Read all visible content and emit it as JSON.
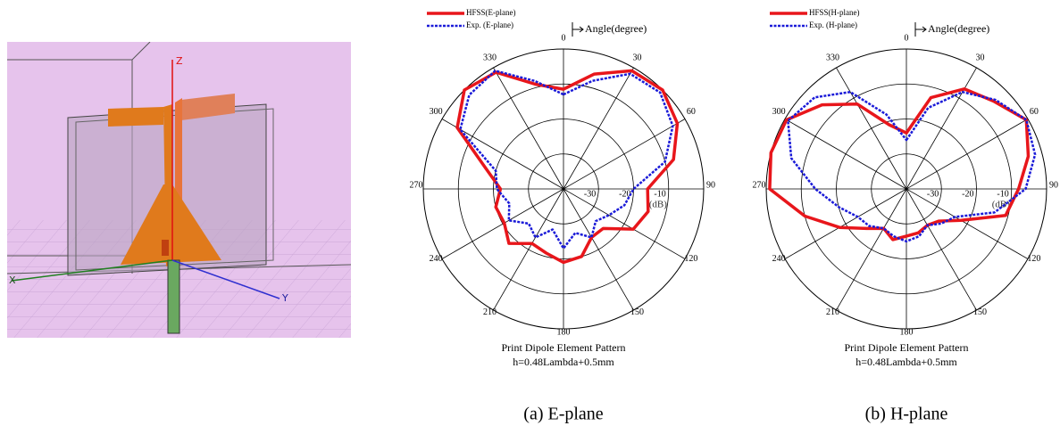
{
  "model": {
    "axis_labels": [
      "Z",
      "X",
      "Y"
    ]
  },
  "chart_data": [
    {
      "type": "polar",
      "caption": "(a) E-plane",
      "title": "Print Dipole Element Pattern",
      "subtitle": "h=0.48Lambda+0.5mm",
      "angle_label": "Angle(degree)",
      "r_label": "(dB)",
      "x": [
        0,
        15,
        30,
        45,
        60,
        75,
        90,
        105,
        120,
        135,
        150,
        165,
        180,
        195,
        210,
        225,
        240,
        255,
        270,
        285,
        300,
        315,
        330,
        345
      ],
      "xticks": [
        0,
        30,
        60,
        90,
        120,
        150,
        180,
        210,
        240,
        270,
        300,
        330
      ],
      "rlim": [
        -40,
        0
      ],
      "rticks": [
        -30,
        -20,
        -10
      ],
      "series": [
        {
          "name": "HFSS(E-plane)",
          "color": "#e8161b",
          "values": [
            -11.5,
            -6,
            -1,
            0,
            -2.5,
            -7.5,
            -16,
            -15,
            -17,
            -24,
            -24,
            -20,
            -19,
            -21,
            -22,
            -18,
            -20.5,
            -20,
            -22,
            -17,
            -5,
            0,
            -1.5,
            -9
          ]
        },
        {
          "name": "Exp. (E-plane)",
          "color": "#1b1bd8",
          "values": [
            -13,
            -8,
            -2,
            -1,
            -4,
            -10,
            -20,
            -22,
            -25,
            -27,
            -24,
            -27,
            -23,
            -28,
            -24,
            -26,
            -22,
            -24,
            -21,
            -20,
            -6,
            -2,
            -1,
            -8
          ]
        }
      ]
    },
    {
      "type": "polar",
      "caption": "(b) H-plane",
      "title": "Print Dipole Element Pattern",
      "subtitle": "h=0.48Lambda+0.5mm",
      "angle_label": "Angle(degree)",
      "r_label": "(dB)",
      "x": [
        0,
        15,
        30,
        45,
        60,
        75,
        90,
        105,
        120,
        135,
        150,
        165,
        180,
        195,
        210,
        225,
        240,
        255,
        270,
        285,
        300,
        315,
        330,
        345
      ],
      "xticks": [
        0,
        30,
        60,
        90,
        120,
        150,
        180,
        210,
        240,
        270,
        300,
        330
      ],
      "rlim": [
        -40,
        0
      ],
      "rticks": [
        -30,
        -20,
        -10
      ],
      "series": [
        {
          "name": "HFSS(H-plane)",
          "color": "#e8161b",
          "values": [
            -24,
            -13,
            -7,
            -4.6,
            -0.5,
            -4,
            -8,
            -10.7,
            -22,
            -27,
            -28,
            -27,
            -26.5,
            -25,
            -27,
            -24,
            -18,
            -10,
            -1,
            0,
            -0.5,
            -6,
            -12,
            -21
          ]
        },
        {
          "name": "Exp. (H-plane)",
          "color": "#1b1bd8",
          "values": [
            -26,
            -16,
            -8,
            -4,
            -0.5,
            -2,
            -6,
            -14,
            -24,
            -26,
            -28,
            -26,
            -25,
            -26,
            -27,
            -25,
            -24,
            -20,
            -14,
            -6,
            -1,
            -3,
            -8,
            -18
          ]
        }
      ]
    }
  ]
}
